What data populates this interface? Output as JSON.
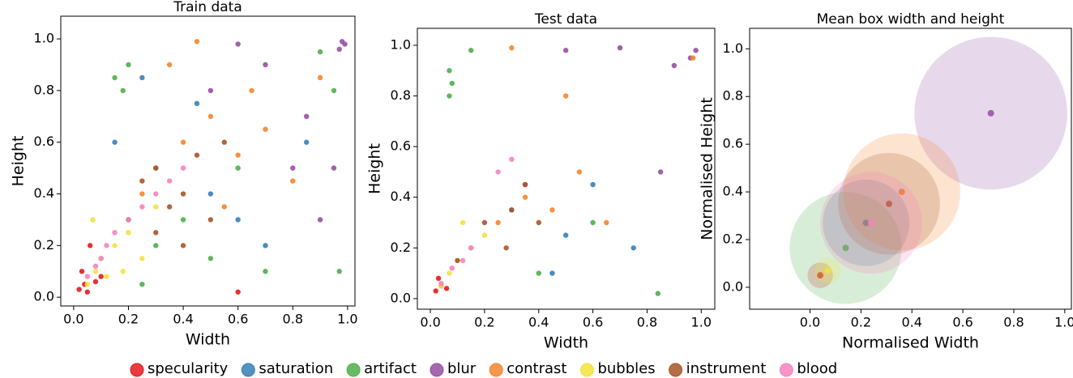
{
  "chart_data": [
    {
      "type": "scatter",
      "title": "Train data",
      "x_label": "Width",
      "y_label": "Height",
      "xlim": [
        -0.047,
        1.027
      ],
      "ylim": [
        -0.034,
        1.088
      ],
      "xticks": [
        {
          "value": 0,
          "label": "0.0"
        },
        0.2,
        0.4,
        0.6,
        0.8,
        {
          "value": 1,
          "label": "1.0"
        }
      ],
      "yticks": [
        {
          "value": 0,
          "label": "0.0"
        },
        0.2,
        0.4,
        0.6,
        0.8,
        {
          "value": 1,
          "label": "1.0"
        }
      ],
      "series": [
        {
          "name": "specularity",
          "color": "#e41a1c",
          "x": [
            0.02,
            0.04,
            0.05,
            0.08,
            0.03,
            0.1,
            0.6,
            0.06
          ],
          "y": [
            0.03,
            0.05,
            0.02,
            0.06,
            0.1,
            0.08,
            0.02,
            0.2
          ]
        },
        {
          "name": "saturation",
          "color": "#377eb8",
          "x": [
            0.1,
            0.2,
            0.3,
            0.5,
            0.7,
            0.85,
            0.45,
            0.25,
            0.6,
            0.15
          ],
          "y": [
            0.15,
            0.3,
            0.5,
            0.4,
            0.2,
            0.6,
            0.75,
            0.85,
            0.3,
            0.6
          ]
        },
        {
          "name": "artifact",
          "color": "#4daf4a",
          "x": [
            0.15,
            0.18,
            0.2,
            0.3,
            0.5,
            0.7,
            0.9,
            0.95,
            0.97,
            0.4,
            0.6,
            0.25
          ],
          "y": [
            0.85,
            0.8,
            0.9,
            0.2,
            0.15,
            0.1,
            0.95,
            0.8,
            0.1,
            0.3,
            0.5,
            0.05
          ]
        },
        {
          "name": "blur",
          "color": "#984ea3",
          "x": [
            0.98,
            0.97,
            0.99,
            0.95,
            0.85,
            0.7,
            0.9,
            0.6,
            0.8,
            0.5
          ],
          "y": [
            0.99,
            0.96,
            0.98,
            0.5,
            0.7,
            0.9,
            0.3,
            0.98,
            0.5,
            0.8
          ]
        },
        {
          "name": "contrast",
          "color": "#f5852d",
          "x": [
            0.3,
            0.4,
            0.5,
            0.6,
            0.7,
            0.8,
            0.45,
            0.35,
            0.9,
            0.25,
            0.55,
            0.65
          ],
          "y": [
            0.5,
            0.6,
            0.7,
            0.55,
            0.65,
            0.45,
            0.99,
            0.9,
            0.85,
            0.4,
            0.35,
            0.8
          ]
        },
        {
          "name": "bubbles",
          "color": "#f2e33c",
          "x": [
            0.05,
            0.08,
            0.1,
            0.12,
            0.15,
            0.2,
            0.25,
            0.07,
            0.18,
            0.3
          ],
          "y": [
            0.05,
            0.1,
            0.15,
            0.08,
            0.2,
            0.25,
            0.15,
            0.3,
            0.1,
            0.35
          ]
        },
        {
          "name": "instrument",
          "color": "#a65628",
          "x": [
            0.2,
            0.25,
            0.3,
            0.35,
            0.4,
            0.45,
            0.3,
            0.5,
            0.55,
            0.4
          ],
          "y": [
            0.3,
            0.45,
            0.5,
            0.35,
            0.4,
            0.55,
            0.25,
            0.3,
            0.6,
            0.2
          ]
        },
        {
          "name": "blood",
          "color": "#f781bf",
          "x": [
            0.05,
            0.1,
            0.12,
            0.15,
            0.2,
            0.25,
            0.3,
            0.35,
            0.4,
            0.08
          ],
          "y": [
            0.08,
            0.15,
            0.2,
            0.25,
            0.3,
            0.35,
            0.4,
            0.45,
            0.5,
            0.12
          ]
        }
      ]
    },
    {
      "type": "scatter",
      "title": "Test data",
      "x_label": "Width",
      "y_label": "Height",
      "xlim": [
        -0.048,
        1.05
      ],
      "ylim": [
        -0.042,
        1.067
      ],
      "xticks": [
        {
          "value": 0,
          "label": "0.0"
        },
        0.2,
        0.4,
        0.6,
        0.8,
        {
          "value": 1,
          "label": "1.0"
        }
      ],
      "yticks": [
        {
          "value": 0,
          "label": "0.0"
        },
        0.2,
        0.4,
        0.6,
        0.8,
        {
          "value": 1,
          "label": "1.0"
        }
      ],
      "series": [
        {
          "name": "specularity",
          "color": "#e41a1c",
          "x": [
            0.02,
            0.04,
            0.06,
            0.03
          ],
          "y": [
            0.03,
            0.05,
            0.04,
            0.08
          ]
        },
        {
          "name": "saturation",
          "color": "#377eb8",
          "x": [
            0.15,
            0.3,
            0.5,
            0.6,
            0.75,
            0.45
          ],
          "y": [
            0.2,
            0.35,
            0.25,
            0.45,
            0.2,
            0.1
          ]
        },
        {
          "name": "artifact",
          "color": "#4daf4a",
          "x": [
            0.07,
            0.08,
            0.07,
            0.15,
            0.4,
            0.84,
            0.6
          ],
          "y": [
            0.9,
            0.85,
            0.8,
            0.98,
            0.1,
            0.02,
            0.3
          ]
        },
        {
          "name": "blur",
          "color": "#984ea3",
          "x": [
            0.98,
            0.96,
            0.7,
            0.85,
            0.5,
            0.9,
            0.35
          ],
          "y": [
            0.98,
            0.95,
            0.99,
            0.5,
            0.98,
            0.92,
            0.45
          ]
        },
        {
          "name": "contrast",
          "color": "#f5852d",
          "x": [
            0.25,
            0.35,
            0.45,
            0.55,
            0.65,
            0.3,
            0.5,
            0.97
          ],
          "y": [
            0.3,
            0.4,
            0.35,
            0.5,
            0.3,
            0.99,
            0.8,
            0.95
          ]
        },
        {
          "name": "bubbles",
          "color": "#f2e33c",
          "x": [
            0.04,
            0.07,
            0.1,
            0.15,
            0.2,
            0.12
          ],
          "y": [
            0.05,
            0.1,
            0.15,
            0.2,
            0.25,
            0.3
          ]
        },
        {
          "name": "instrument",
          "color": "#a65628",
          "x": [
            0.1,
            0.2,
            0.3,
            0.35,
            0.4,
            0.28
          ],
          "y": [
            0.15,
            0.3,
            0.35,
            0.45,
            0.3,
            0.2
          ]
        },
        {
          "name": "blood",
          "color": "#f781bf",
          "x": [
            0.04,
            0.08,
            0.12,
            0.15,
            0.25,
            0.3
          ],
          "y": [
            0.06,
            0.12,
            0.15,
            0.2,
            0.5,
            0.55
          ]
        }
      ]
    },
    {
      "type": "bubble",
      "title": "Mean box width and height",
      "x_label": "Normalised Width",
      "y_label": "Normalised Height",
      "xlim": [
        -0.237,
        1.026
      ],
      "ylim": [
        -0.092,
        1.086
      ],
      "xticks": [
        {
          "value": 0,
          "label": "0.0"
        },
        0.2,
        0.4,
        0.6,
        0.8,
        {
          "value": 1,
          "label": "1.0"
        }
      ],
      "yticks": [
        {
          "value": 0,
          "label": "0.0"
        },
        0.2,
        0.4,
        0.6,
        0.8,
        {
          "value": 1,
          "label": "1.0"
        }
      ],
      "series": [
        {
          "name": "specularity",
          "color": "#e41a1c",
          "x": [
            0.04
          ],
          "y": [
            0.05
          ],
          "size": [
            0.05
          ]
        },
        {
          "name": "saturation",
          "color": "#377eb8",
          "x": [
            0.22
          ],
          "y": [
            0.27
          ],
          "size": [
            0.17
          ]
        },
        {
          "name": "artifact",
          "color": "#4daf4a",
          "x": [
            0.14
          ],
          "y": [
            0.165
          ],
          "size": [
            0.22
          ]
        },
        {
          "name": "blur",
          "color": "#984ea3",
          "x": [
            0.71
          ],
          "y": [
            0.73
          ],
          "size": [
            0.3
          ]
        },
        {
          "name": "contrast",
          "color": "#f5852d",
          "x": [
            0.36
          ],
          "y": [
            0.4
          ],
          "size": [
            0.23
          ]
        },
        {
          "name": "bubbles",
          "color": "#f2e33c",
          "x": [
            0.07
          ],
          "y": [
            0.07
          ],
          "size": [
            0.05
          ]
        },
        {
          "name": "instrument",
          "color": "#a65628",
          "x": [
            0.31
          ],
          "y": [
            0.35
          ],
          "size": [
            0.2
          ]
        },
        {
          "name": "blood",
          "color": "#f781bf",
          "x": [
            0.24
          ],
          "y": [
            0.27
          ],
          "size": [
            0.2
          ]
        }
      ]
    }
  ]
}
